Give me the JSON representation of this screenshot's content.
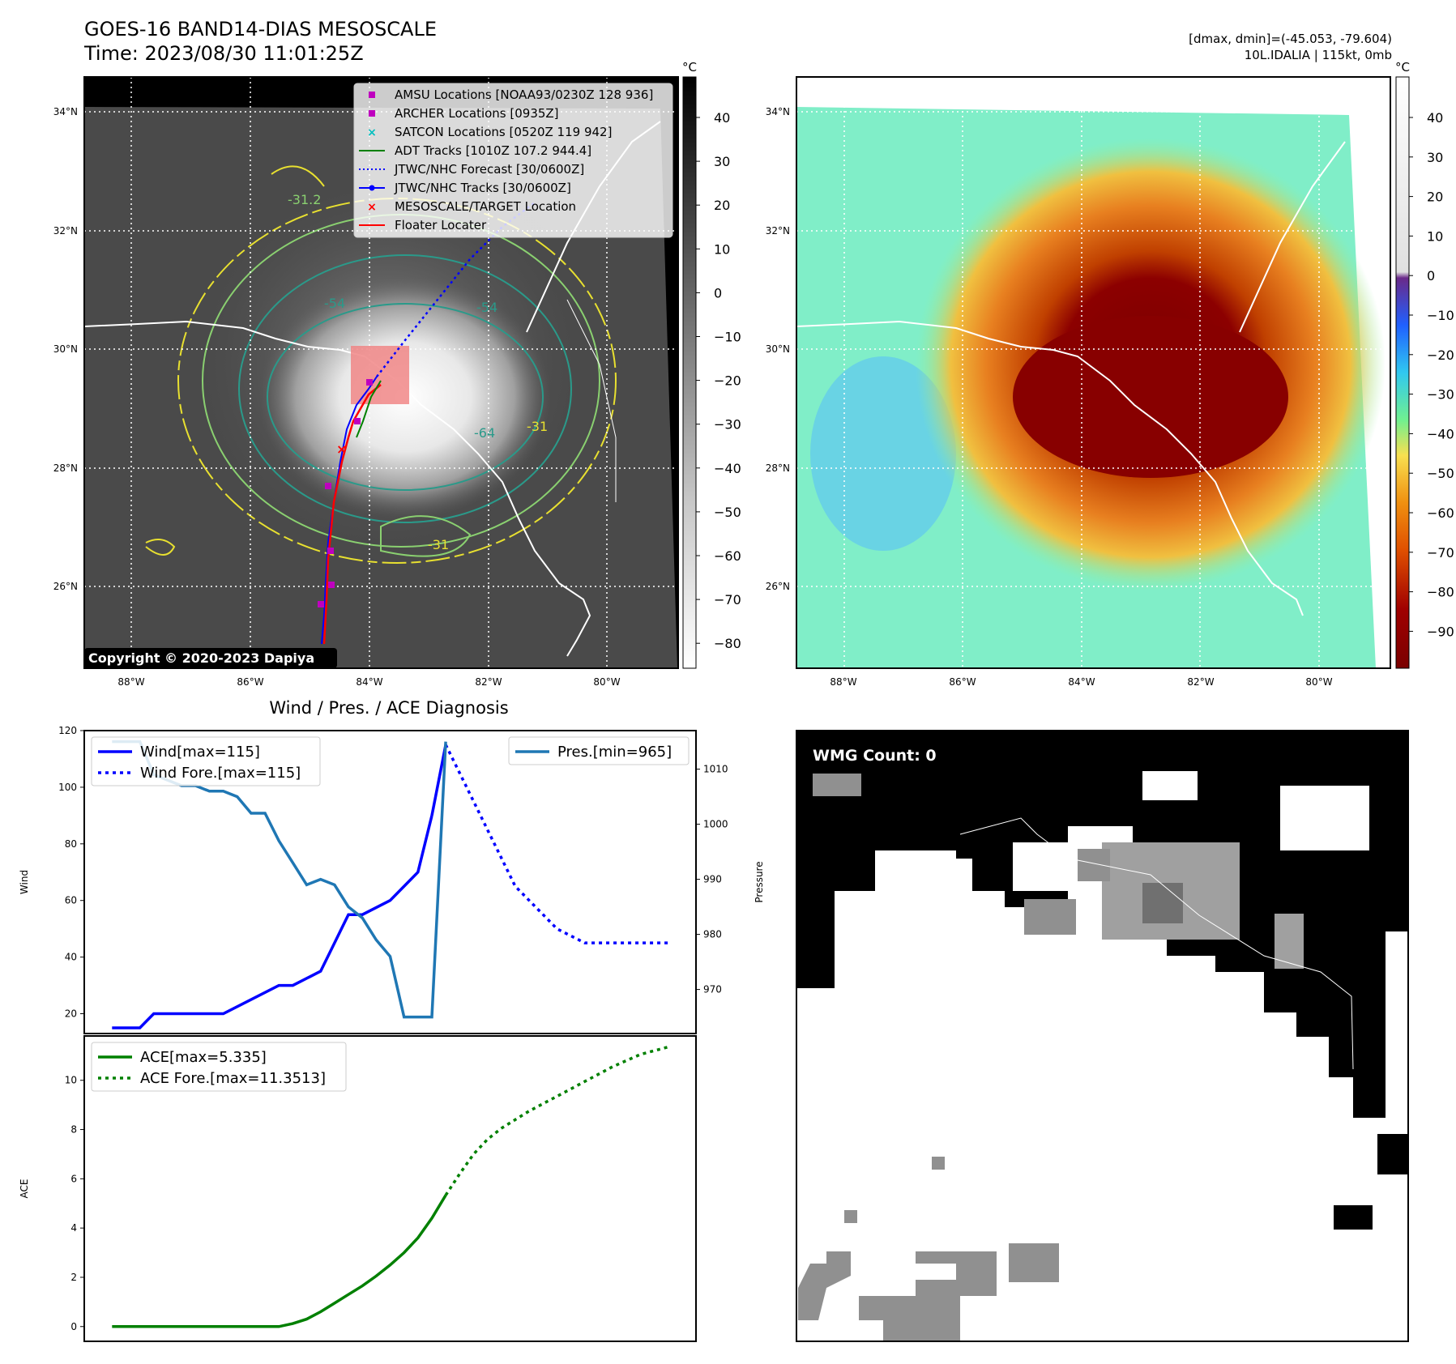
{
  "header": {
    "title": "GOES-16 BAND14-DIAS MESOSCALE",
    "time": "Time: 2023/08/30 11:01:25Z",
    "dminmax": "[dmax, dmin]=(-45.053, -79.604)",
    "storm": "10L.IDALIA | 115kt, 0mb"
  },
  "copyright": "Copyright © 2020-2023 Dapiya",
  "map_axes": {
    "lat_labels": [
      "34°N",
      "32°N",
      "30°N",
      "28°N",
      "26°N"
    ],
    "lon_labels": [
      "88°W",
      "86°W",
      "84°W",
      "82°W",
      "80°W"
    ]
  },
  "colorbar_left": {
    "unit": "°C",
    "ticks": [
      "40",
      "30",
      "20",
      "10",
      "0",
      "−10",
      "−20",
      "−30",
      "−40",
      "−50",
      "−60",
      "−70",
      "−80"
    ]
  },
  "colorbar_right": {
    "unit": "°C",
    "ticks": [
      "40",
      "30",
      "20",
      "10",
      "0",
      "−10",
      "−20",
      "−30",
      "−40",
      "−50",
      "−60",
      "−70",
      "−80",
      "−90"
    ]
  },
  "legend": [
    {
      "label": "AMSU Locations [NOAA93/0230Z 128 936]",
      "marker": "square",
      "color": "#bf00bf"
    },
    {
      "label": "ARCHER Locations [0935Z]",
      "marker": "square",
      "color": "#bf00bf"
    },
    {
      "label": "SATCON Locations [0520Z 119 942]",
      "marker": "x",
      "color": "#00bfbf"
    },
    {
      "label": "ADT Tracks [1010Z 107.2 944.4]",
      "marker": "line",
      "color": "#008000"
    },
    {
      "label": "JTWC/NHC Forecast [30/0600Z]",
      "marker": "dotted",
      "color": "#0000ff"
    },
    {
      "label": "JTWC/NHC Tracks [30/0600Z]",
      "marker": "line-dot",
      "color": "#0000ff"
    },
    {
      "label": "MESOSCALE/TARGET Location",
      "marker": "x",
      "color": "#ff0000"
    },
    {
      "label": "Floater Locater",
      "marker": "line",
      "color": "#ff0000"
    }
  ],
  "contour_labels": [
    "-31.2",
    "-54",
    "-54",
    "-64",
    "-31",
    "-31"
  ],
  "wmg": {
    "label": "WMG Count: 0"
  },
  "diagnosis": {
    "title": "Wind / Pres. / ACE Diagnosis"
  },
  "chart_data": [
    {
      "type": "line",
      "title": "Wind / Pres. / ACE Diagnosis",
      "ylabel": "Wind",
      "ylabel_right": "Pressure",
      "ylim": [
        13,
        120
      ],
      "ylim_right": [
        962,
        1017
      ],
      "yticks": [
        20,
        40,
        60,
        80,
        100,
        120
      ],
      "yticks_right": [
        970,
        980,
        990,
        1000,
        1010
      ],
      "xlim": [
        -1,
        43
      ],
      "legend": [
        "Wind[max=115]",
        "Wind Fore.[max=115]",
        "Pres.[min=965]"
      ],
      "series": [
        {
          "name": "Wind[max=115]",
          "color": "#0000ff",
          "style": "solid",
          "axis": "left",
          "x": [
            1,
            3,
            4,
            6,
            8,
            9,
            11,
            13,
            14,
            16,
            17,
            18,
            19,
            21,
            23,
            24
          ],
          "values": [
            15,
            15,
            20,
            20,
            20,
            20,
            25,
            30,
            30,
            35,
            45,
            55,
            55,
            60,
            70,
            90
          ]
        },
        {
          "name": "",
          "color": "#0000ff",
          "style": "solid",
          "axis": "left",
          "x": [
            24,
            25
          ],
          "values": [
            90,
            115
          ]
        },
        {
          "name": "Wind Fore.[max=115]",
          "color": "#0000ff",
          "style": "dotted",
          "axis": "left",
          "x": [
            25,
            26,
            27,
            28,
            29,
            30,
            31,
            32,
            33,
            35,
            37,
            39,
            41
          ],
          "values": [
            115,
            105,
            95,
            85,
            75,
            65,
            60,
            55,
            50,
            45,
            45,
            45,
            45
          ]
        },
        {
          "name": "Pres.[min=965]",
          "color": "#1f77b4",
          "style": "solid",
          "axis": "right",
          "x": [
            1,
            3,
            4,
            5,
            6,
            7,
            8,
            9,
            10,
            11,
            12,
            13,
            14,
            15,
            16,
            17,
            18,
            19,
            20,
            21,
            22,
            23,
            24,
            25
          ],
          "values": [
            1015,
            1015,
            1009,
            1008,
            1007,
            1007,
            1006,
            1006,
            1005,
            1002,
            1002,
            997,
            993,
            989,
            990,
            989,
            985,
            983,
            979,
            976,
            965,
            965,
            965,
            1015
          ]
        }
      ]
    },
    {
      "type": "line",
      "ylabel": "ACE",
      "ylim": [
        -0.6,
        11.8
      ],
      "yticks": [
        0,
        2,
        4,
        6,
        8,
        10
      ],
      "xlim": [
        -1,
        43
      ],
      "legend": [
        "ACE[max=5.335]",
        "ACE Fore.[max=11.3513]"
      ],
      "series": [
        {
          "name": "ACE[max=5.335]",
          "color": "#008000",
          "style": "solid",
          "x": [
            1,
            3,
            5,
            7,
            9,
            11,
            12,
            13,
            14,
            15,
            16,
            17,
            18,
            19,
            20,
            21,
            22,
            23,
            24,
            25
          ],
          "values": [
            0,
            0,
            0,
            0,
            0,
            0,
            0,
            0,
            0.12,
            0.3,
            0.6,
            0.95,
            1.3,
            1.65,
            2.05,
            2.5,
            3.0,
            3.6,
            4.4,
            5.335
          ]
        },
        {
          "name": "ACE Fore.[max=11.3513]",
          "color": "#008000",
          "style": "dotted",
          "x": [
            25,
            26,
            27,
            28,
            29,
            30,
            31,
            32,
            33,
            34,
            35,
            36,
            37,
            38,
            39,
            40,
            41
          ],
          "values": [
            5.335,
            6.2,
            7.0,
            7.6,
            8.05,
            8.4,
            8.75,
            9.05,
            9.35,
            9.65,
            9.95,
            10.25,
            10.55,
            10.8,
            11.05,
            11.2,
            11.3513
          ]
        }
      ]
    }
  ]
}
